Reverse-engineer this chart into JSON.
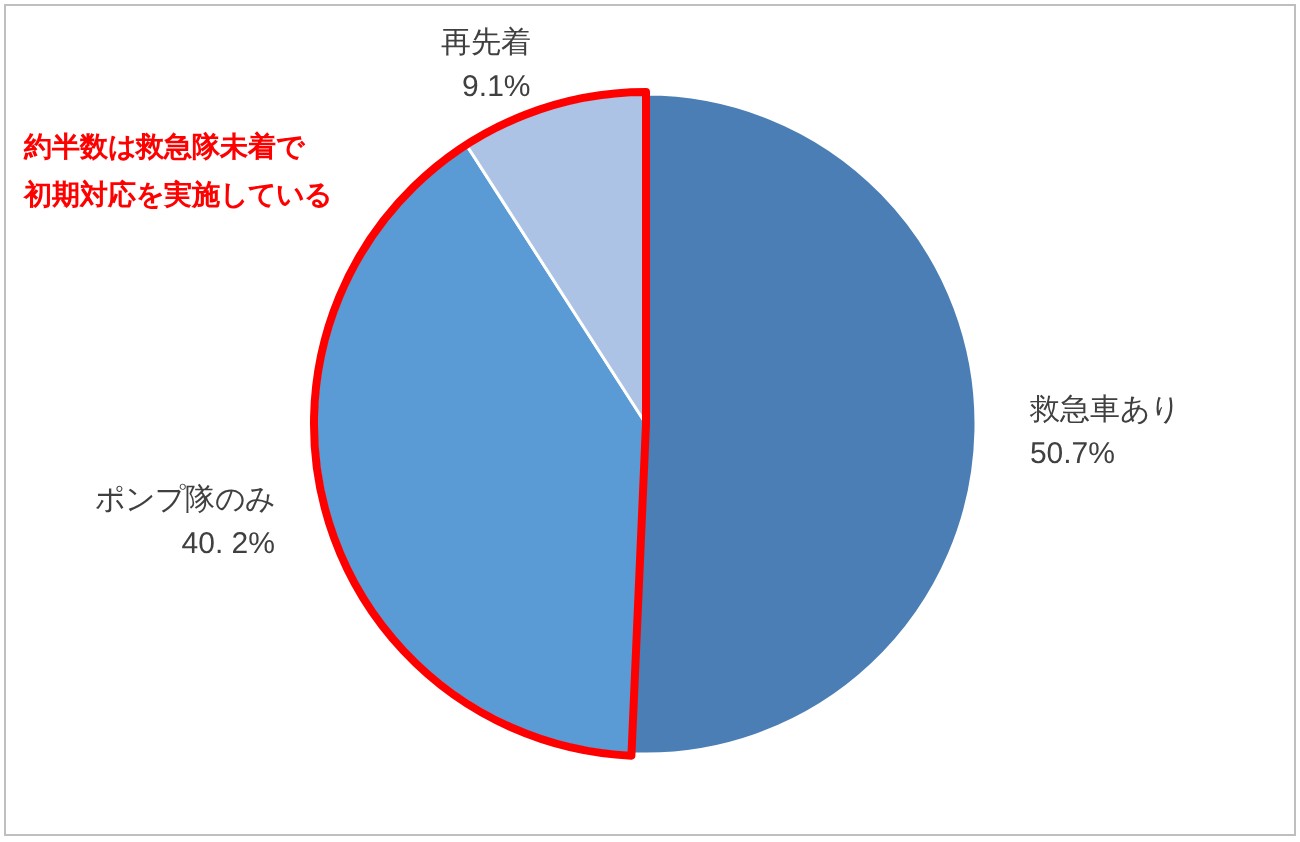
{
  "chart_data": {
    "type": "pie",
    "categories": [
      "救急車あり",
      "ポンプ隊のみ",
      "再先着"
    ],
    "values": [
      50.7,
      40.2,
      9.1
    ],
    "value_labels": [
      "50.7%",
      "40. 2%",
      "9.1%"
    ],
    "colors": [
      "#4a7eb4",
      "#5b9bd5",
      "#adc3e5"
    ],
    "annotations": [
      "約半数は救急隊未着で",
      "初期対応を実施している"
    ],
    "legend": false
  }
}
